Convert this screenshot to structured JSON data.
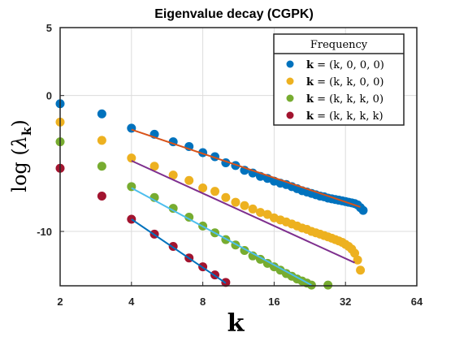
{
  "chart_data": {
    "type": "scatter",
    "title": "Eigenvalue decay (CGPK)",
    "xlabel": "k",
    "ylabel": "log (λ_k)",
    "xscale": "log2",
    "xlim": [
      2,
      64
    ],
    "ylim": [
      -14,
      5
    ],
    "xticks": [
      2,
      4,
      8,
      16,
      32,
      64
    ],
    "xtick_labels": [
      "2",
      "4",
      "8",
      "16",
      "32",
      "64"
    ],
    "yticks": [
      5,
      0,
      -10
    ],
    "ytick_labels": [
      "5",
      "0",
      "-10"
    ],
    "grid": true,
    "legend": {
      "title": "Frequency",
      "placement": "top-right"
    },
    "series": [
      {
        "name": "k = (k, 0, 0, 0)",
        "legend_bold": "k",
        "legend_rest": " = (k, 0, 0, 0)",
        "color": "#0072BD",
        "line_color": "#D95319",
        "x": [
          2,
          3,
          4,
          5,
          6,
          7,
          8,
          9,
          10,
          11,
          12,
          13,
          14,
          15,
          16,
          17,
          18,
          19,
          20,
          21,
          22,
          23,
          24,
          25,
          26,
          27,
          28,
          29,
          30,
          31,
          32,
          33,
          34,
          35,
          36,
          37,
          38
        ],
        "y": [
          -0.6,
          -1.35,
          -2.4,
          -2.85,
          -3.4,
          -3.75,
          -4.2,
          -4.5,
          -4.95,
          -5.15,
          -5.5,
          -5.7,
          -5.95,
          -6.1,
          -6.3,
          -6.45,
          -6.55,
          -6.7,
          -6.85,
          -7.0,
          -7.1,
          -7.2,
          -7.3,
          -7.4,
          -7.45,
          -7.55,
          -7.6,
          -7.65,
          -7.7,
          -7.75,
          -7.8,
          -7.85,
          -7.9,
          -7.95,
          -8.05,
          -8.25,
          -8.45
        ],
        "fit": [
          [
            4,
            -2.5
          ],
          [
            37,
            -8.2
          ]
        ]
      },
      {
        "name": "k = (k, k, 0, 0)",
        "legend_bold": "k",
        "legend_rest": " = (k, k, 0, 0)",
        "color": "#EDB120",
        "line_color": "#7E2F8E",
        "x": [
          2,
          3,
          4,
          5,
          6,
          7,
          8,
          9,
          10,
          11,
          12,
          13,
          14,
          15,
          16,
          17,
          18,
          19,
          20,
          21,
          22,
          23,
          24,
          25,
          26,
          27,
          28,
          29,
          30,
          31,
          32,
          33,
          34,
          35,
          36,
          37
        ],
        "y": [
          -1.95,
          -3.3,
          -4.6,
          -5.2,
          -5.85,
          -6.25,
          -6.8,
          -7.05,
          -7.5,
          -7.85,
          -8.1,
          -8.35,
          -8.6,
          -8.75,
          -9.0,
          -9.15,
          -9.3,
          -9.45,
          -9.6,
          -9.75,
          -9.85,
          -10.0,
          -10.1,
          -10.2,
          -10.3,
          -10.4,
          -10.5,
          -10.6,
          -10.7,
          -10.8,
          -10.95,
          -11.1,
          -11.3,
          -11.6,
          -12.1,
          -12.85
        ],
        "fit": [
          [
            4,
            -4.8
          ],
          [
            35,
            -12.3
          ]
        ]
      },
      {
        "name": "k = (k, k, k, 0)",
        "legend_bold": "k",
        "legend_rest": " = (k, k, k, 0)",
        "color": "#77AC30",
        "line_color": "#4DBEEE",
        "x": [
          2,
          3,
          4,
          5,
          6,
          7,
          8,
          9,
          10,
          11,
          12,
          13,
          14,
          15,
          16,
          17,
          18,
          19,
          20,
          21,
          22,
          23,
          27
        ],
        "y": [
          -3.4,
          -5.2,
          -6.7,
          -7.5,
          -8.3,
          -8.95,
          -9.6,
          -10.1,
          -10.6,
          -11.0,
          -11.4,
          -11.8,
          -12.05,
          -12.35,
          -12.6,
          -12.85,
          -13.1,
          -13.3,
          -13.5,
          -13.65,
          -13.8,
          -13.95,
          -13.95
        ],
        "fit": [
          [
            4,
            -6.8
          ],
          [
            23,
            -13.95
          ]
        ]
      },
      {
        "name": "k = (k, k, k, k)",
        "legend_bold": "k",
        "legend_rest": " = (k, k, k, k)",
        "color": "#A2142F",
        "line_color": "#0072BD",
        "x": [
          2,
          3,
          4,
          5,
          6,
          7,
          8,
          9,
          10
        ],
        "y": [
          -5.35,
          -7.4,
          -9.1,
          -10.2,
          -11.1,
          -11.95,
          -12.6,
          -13.2,
          -13.75
        ],
        "fit": [
          [
            4,
            -9.1
          ],
          [
            10,
            -13.8
          ]
        ]
      }
    ]
  }
}
